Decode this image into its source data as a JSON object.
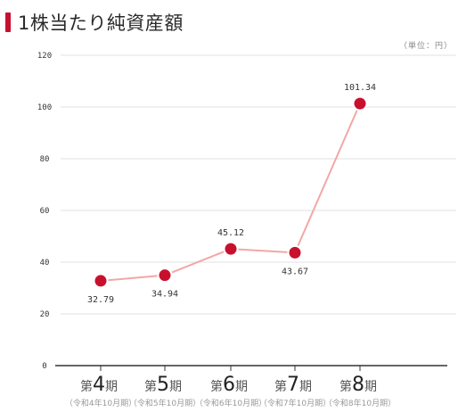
{
  "title": "1株当たり純資産額",
  "unit_label": "（単位：円）",
  "colors": {
    "accent": "#c8102e",
    "line": "#f2a7a7",
    "grid": "#e0e0e0",
    "axis": "#333333"
  },
  "chart_data": {
    "type": "line",
    "title": "1株当たり純資産額",
    "categories": [
      "第4期",
      "第5期",
      "第6期",
      "第7期",
      "第8期"
    ],
    "category_parts": [
      {
        "prefix": "第",
        "num": "4",
        "suffix": "期",
        "sub": "（令和4年10月期）"
      },
      {
        "prefix": "第",
        "num": "5",
        "suffix": "期",
        "sub": "（令和5年10月期）"
      },
      {
        "prefix": "第",
        "num": "6",
        "suffix": "期",
        "sub": "（令和6年10月期）"
      },
      {
        "prefix": "第",
        "num": "7",
        "suffix": "期",
        "sub": "（令和7年10月期）"
      },
      {
        "prefix": "第",
        "num": "8",
        "suffix": "期",
        "sub": "（令和8年10月期）"
      }
    ],
    "values": [
      32.79,
      34.94,
      45.12,
      43.67,
      101.34
    ],
    "value_labels": [
      "32.79",
      "34.94",
      "45.12",
      "43.67",
      "101.34"
    ],
    "label_positions": [
      "below",
      "below",
      "above",
      "below",
      "above"
    ],
    "yticks": [
      0,
      20,
      40,
      60,
      80,
      100,
      120
    ],
    "ylim": [
      0,
      120
    ],
    "grid": true,
    "xlabel": "",
    "ylabel": ""
  }
}
